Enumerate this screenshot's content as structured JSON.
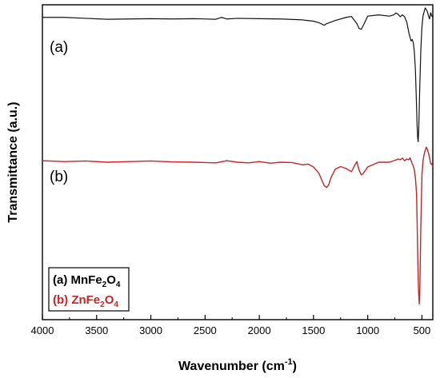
{
  "chart_data": {
    "type": "line",
    "xlabel": "Wavenumber (cm",
    "xlabel_sup": "-1",
    "xlabel_close": ")",
    "ylabel": "Transmittance (a.u.)",
    "xlim": [
      4000,
      400
    ],
    "x_reversed": true,
    "x_ticks": [
      4000,
      3500,
      3000,
      2500,
      2000,
      1500,
      1000,
      500
    ],
    "y_ticks_labeled": false,
    "grid": false,
    "legend_position": "bottom-left",
    "curve_labels": [
      "(a)",
      "(b)"
    ],
    "legend": [
      {
        "prefix": "(a) MnFe",
        "sub1": "2",
        "mid": "O",
        "sub2": "4",
        "color": "#000000"
      },
      {
        "prefix": "(b) ZnFe",
        "sub1": "2",
        "mid": "O",
        "sub2": "4",
        "color": "#cc2222"
      }
    ],
    "ylim": [
      0,
      100
    ],
    "series": [
      {
        "color": "#111111",
        "x": [
          4000,
          3800,
          3600,
          3400,
          3200,
          3000,
          2800,
          2600,
          2400,
          2350,
          2300,
          2200,
          2000,
          1800,
          1600,
          1500,
          1450,
          1400,
          1380,
          1300,
          1200,
          1150,
          1100,
          1080,
          1060,
          1040,
          1000,
          900,
          800,
          760,
          740,
          720,
          700,
          680,
          660,
          640,
          620,
          600,
          590,
          580,
          570,
          560,
          550,
          545,
          540,
          535,
          530,
          520,
          510,
          500,
          490,
          480,
          470,
          460,
          450,
          440,
          430,
          420,
          410,
          400
        ],
        "y": [
          96,
          96,
          95.7,
          95.4,
          95.5,
          95.6,
          95.5,
          95.6,
          95.4,
          96,
          95.5,
          95.7,
          95.6,
          95.5,
          95.2,
          94.8,
          94.3,
          93.5,
          94,
          95,
          96,
          96.3,
          94,
          92.5,
          92.2,
          93.5,
          96.4,
          96.8,
          96.4,
          96.8,
          97.4,
          97,
          96.2,
          96.8,
          96.2,
          94.5,
          91,
          88.5,
          89,
          88,
          85,
          79,
          68,
          62,
          58,
          56.5,
          60,
          74,
          86,
          93,
          96.5,
          97.8,
          99,
          98.5,
          97.8,
          96.5,
          95.5,
          97.5,
          96.5,
          96
        ]
      },
      {
        "color": "#cc2222",
        "x": [
          4000,
          3800,
          3600,
          3400,
          3200,
          3000,
          2800,
          2600,
          2400,
          2300,
          2200,
          2100,
          2000,
          1900,
          1800,
          1700,
          1600,
          1550,
          1500,
          1450,
          1420,
          1400,
          1380,
          1360,
          1340,
          1300,
          1250,
          1200,
          1150,
          1120,
          1100,
          1080,
          1060,
          1040,
          1000,
          900,
          800,
          750,
          720,
          700,
          680,
          660,
          640,
          620,
          610,
          600,
          590,
          580,
          570,
          560,
          550,
          545,
          540,
          535,
          530,
          525,
          520,
          510,
          500,
          490,
          480,
          470,
          460,
          450,
          440,
          430,
          420,
          410,
          400
        ],
        "y": [
          50.5,
          50.2,
          50.4,
          50,
          50.2,
          50.4,
          50.1,
          50,
          49.8,
          50.5,
          50,
          49.8,
          50.2,
          49.7,
          50,
          49.9,
          49.2,
          49.4,
          48.5,
          46.5,
          44,
          42.5,
          42,
          42.8,
          45,
          47.8,
          48.6,
          48,
          47,
          49,
          50.2,
          47.5,
          46,
          46.5,
          48.5,
          50,
          50,
          50.6,
          51,
          50.8,
          51.3,
          50.5,
          51,
          50.8,
          51.4,
          50.5,
          49.5,
          48.8,
          47.5,
          45,
          40,
          32,
          22,
          13,
          8,
          5,
          9,
          30,
          46,
          50.5,
          52.5,
          53.8,
          54.8,
          54,
          53,
          51.5,
          49.5,
          49.5,
          48.5
        ]
      }
    ]
  }
}
